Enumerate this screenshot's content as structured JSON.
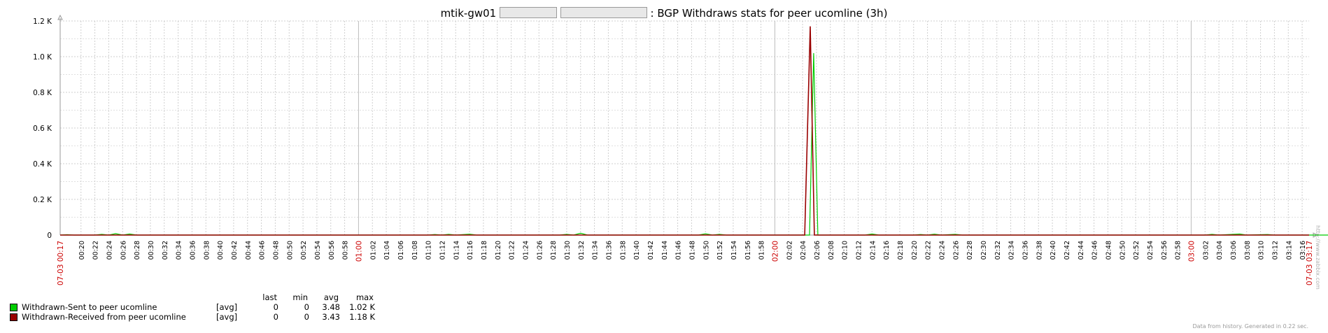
{
  "title": {
    "host": "mtik-gw01",
    "suffix": ": BGP Withdraws stats for peer ucomline (3h)"
  },
  "chart_data": {
    "type": "line",
    "title": "mtik-gw01 [redacted] [redacted]: BGP Withdraws stats for peer ucomline (3h)",
    "xlabel": "",
    "ylabel": "",
    "ylim": [
      0,
      1200
    ],
    "y_ticks": [
      {
        "value": 0,
        "label": "0"
      },
      {
        "value": 200,
        "label": "0.2 K"
      },
      {
        "value": 400,
        "label": "0.4 K"
      },
      {
        "value": 600,
        "label": "0.6 K"
      },
      {
        "value": 800,
        "label": "0.8 K"
      },
      {
        "value": 1000,
        "label": "1.0 K"
      },
      {
        "value": 1200,
        "label": "1.2 K"
      }
    ],
    "x_range_minutes": [
      17,
      197
    ],
    "x_ticks_minutes": [
      20,
      22,
      24,
      26,
      28,
      30,
      32,
      34,
      36,
      38,
      40,
      42,
      44,
      46,
      48,
      50,
      52,
      54,
      56,
      58,
      60,
      62,
      64,
      66,
      68,
      70,
      72,
      74,
      76,
      78,
      80,
      82,
      84,
      86,
      88,
      90,
      92,
      94,
      96,
      98,
      100,
      102,
      104,
      106,
      108,
      110,
      112,
      114,
      116,
      118,
      120,
      122,
      124,
      126,
      128,
      130,
      132,
      134,
      136,
      138,
      140,
      142,
      144,
      146,
      148,
      150,
      152,
      154,
      156,
      158,
      160,
      162,
      164,
      166,
      168,
      170,
      172,
      174,
      176,
      178,
      180,
      182,
      184,
      186,
      188,
      190,
      192,
      194,
      196
    ],
    "x_tick_labels": [
      "00:20",
      "00:22",
      "00:24",
      "00:26",
      "00:28",
      "00:30",
      "00:32",
      "00:34",
      "00:36",
      "00:38",
      "00:40",
      "00:42",
      "00:44",
      "00:46",
      "00:48",
      "00:50",
      "00:52",
      "00:54",
      "00:56",
      "00:58",
      "01:00",
      "01:02",
      "01:04",
      "01:06",
      "01:08",
      "01:10",
      "01:12",
      "01:14",
      "01:16",
      "01:18",
      "01:20",
      "01:22",
      "01:24",
      "01:26",
      "01:28",
      "01:30",
      "01:32",
      "01:34",
      "01:36",
      "01:38",
      "01:40",
      "01:42",
      "01:44",
      "01:46",
      "01:48",
      "01:50",
      "01:52",
      "01:54",
      "01:56",
      "01:58",
      "02:00",
      "02:02",
      "02:04",
      "02:06",
      "02:08",
      "02:10",
      "02:12",
      "02:14",
      "02:16",
      "02:18",
      "02:20",
      "02:22",
      "02:24",
      "02:26",
      "02:28",
      "02:30",
      "02:32",
      "02:34",
      "02:36",
      "02:38",
      "02:40",
      "02:42",
      "02:44",
      "02:46",
      "02:48",
      "02:50",
      "02:52",
      "02:54",
      "02:56",
      "02:58",
      "03:00",
      "03:02",
      "03:04",
      "03:06",
      "03:08",
      "03:10",
      "03:12",
      "03:14",
      "03:16"
    ],
    "x_start_label": "07-03 00:17",
    "x_end_label": "07-03 03:17",
    "highlight_ticks": [
      "01:00",
      "02:00",
      "03:00"
    ],
    "grid": true,
    "series": [
      {
        "name": "Withdrawn-Sent to peer ucomline",
        "color": "#00cc00",
        "points": [
          [
            17,
            0
          ],
          [
            18,
            2
          ],
          [
            19,
            0
          ],
          [
            20,
            0
          ],
          [
            22,
            0
          ],
          [
            23,
            4
          ],
          [
            24,
            0
          ],
          [
            25,
            8
          ],
          [
            26,
            0
          ],
          [
            27,
            6
          ],
          [
            28,
            0
          ],
          [
            70,
            0
          ],
          [
            71,
            3
          ],
          [
            72,
            0
          ],
          [
            73,
            4
          ],
          [
            74,
            0
          ],
          [
            76,
            5
          ],
          [
            77,
            0
          ],
          [
            89,
            0
          ],
          [
            90,
            4
          ],
          [
            91,
            0
          ],
          [
            92,
            10
          ],
          [
            93,
            0
          ],
          [
            109,
            0
          ],
          [
            110,
            7
          ],
          [
            111,
            0
          ],
          [
            112,
            4
          ],
          [
            113,
            0
          ],
          [
            125,
            0
          ],
          [
            125.6,
            1020
          ],
          [
            126.2,
            0
          ],
          [
            127,
            0
          ],
          [
            133,
            0
          ],
          [
            134,
            6
          ],
          [
            135,
            0
          ],
          [
            140,
            0
          ],
          [
            141,
            3
          ],
          [
            142,
            0
          ],
          [
            143,
            5
          ],
          [
            144,
            0
          ],
          [
            146,
            4
          ],
          [
            147,
            0
          ],
          [
            182,
            0
          ],
          [
            183,
            4
          ],
          [
            184,
            0
          ],
          [
            187,
            6
          ],
          [
            188,
            0
          ],
          [
            191,
            3
          ],
          [
            192,
            0
          ],
          [
            203,
            0
          ],
          [
            205,
            3
          ],
          [
            206,
            0
          ],
          [
            212,
            0
          ],
          [
            213,
            4
          ],
          [
            214,
            0
          ],
          [
            216,
            6
          ],
          [
            217,
            0
          ],
          [
            218,
            3
          ],
          [
            219,
            0
          ]
        ]
      },
      {
        "name": "Withdrawn-Received from peer ucomline",
        "color": "#990000",
        "points": [
          [
            17,
            0
          ],
          [
            124.3,
            0
          ],
          [
            125.1,
            1170
          ],
          [
            125.7,
            0
          ],
          [
            197,
            0
          ]
        ]
      }
    ]
  },
  "legend": {
    "headers": {
      "last": "last",
      "min": "min",
      "avg": "avg",
      "max": "max"
    },
    "rows": [
      {
        "color": "#00cc00",
        "name": "Withdrawn-Sent to peer ucomline",
        "func": "[avg]",
        "last": "0",
        "min": "0",
        "avg": "3.48",
        "max": "1.02 K"
      },
      {
        "color": "#990000",
        "name": "Withdrawn-Received from peer ucomline",
        "func": "[avg]",
        "last": "0",
        "min": "0",
        "avg": "3.43",
        "max": "1.18 K"
      }
    ]
  },
  "footer": "Data from history. Generated in 0.22 sec.",
  "watermark": "http://www.zabbix.com",
  "colors": {
    "grid": "#cfcfcf",
    "axis": "#9a9a9a",
    "highlight": "#cc0000",
    "frame": "#000000"
  }
}
